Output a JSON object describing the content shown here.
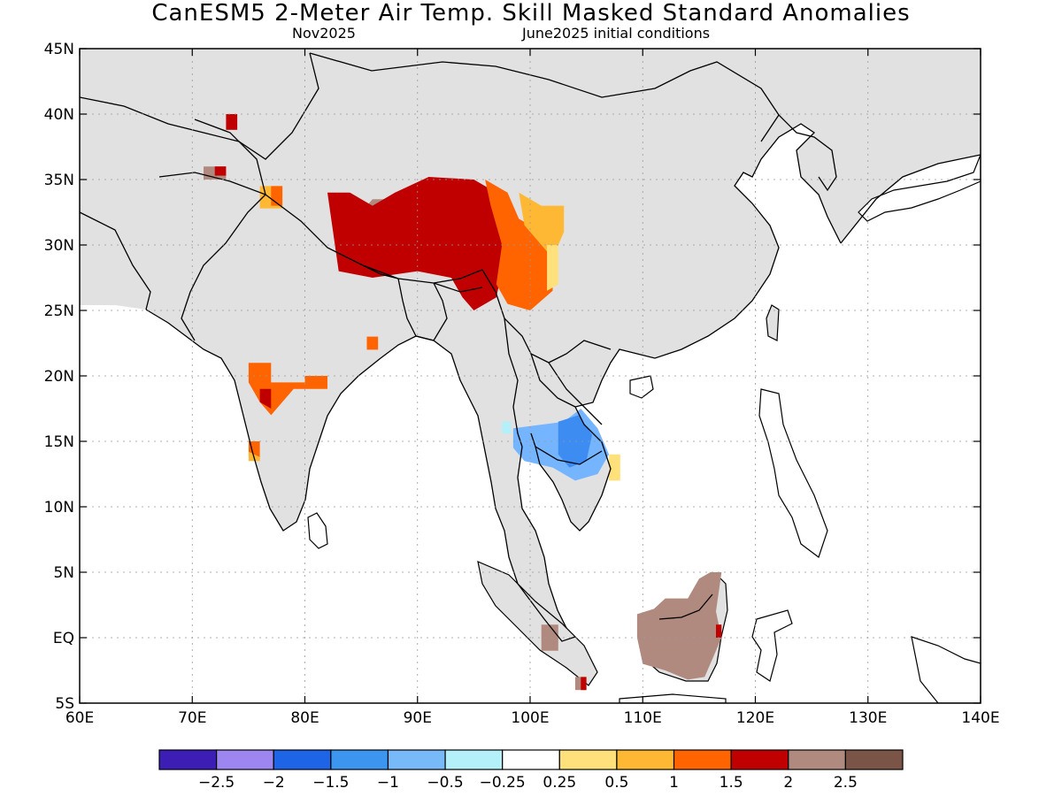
{
  "header": {
    "title": "CanESM5 2-Meter Air Temp. Skill Masked Standard Anomalies",
    "month": "Nov2025",
    "init": "June2025 initial conditions"
  },
  "map": {
    "lon_range": [
      60,
      140
    ],
    "lat_range": [
      -5,
      45
    ],
    "lon_ticks": [
      {
        "v": 60,
        "label": "60E"
      },
      {
        "v": 70,
        "label": "70E"
      },
      {
        "v": 80,
        "label": "80E"
      },
      {
        "v": 90,
        "label": "90E"
      },
      {
        "v": 100,
        "label": "100E"
      },
      {
        "v": 110,
        "label": "110E"
      },
      {
        "v": 120,
        "label": "120E"
      },
      {
        "v": 130,
        "label": "130E"
      },
      {
        "v": 140,
        "label": "140E"
      }
    ],
    "lat_ticks": [
      {
        "v": 45,
        "label": "45N"
      },
      {
        "v": 40,
        "label": "40N"
      },
      {
        "v": 35,
        "label": "35N"
      },
      {
        "v": 30,
        "label": "30N"
      },
      {
        "v": 25,
        "label": "25N"
      },
      {
        "v": 20,
        "label": "20N"
      },
      {
        "v": 15,
        "label": "15N"
      },
      {
        "v": 10,
        "label": "10N"
      },
      {
        "v": 5,
        "label": "5N"
      },
      {
        "v": 0,
        "label": "EQ"
      },
      {
        "v": -5,
        "label": "5S"
      }
    ],
    "land_mask_color": "#e1e1e1",
    "anomaly_regions": [
      {
        "name": "tibet-brown",
        "color": "#b08a7e",
        "points": [
          [
            84,
            31.5
          ],
          [
            86,
            33.5
          ],
          [
            89,
            33.5
          ],
          [
            91,
            35
          ],
          [
            93,
            34
          ],
          [
            94,
            31
          ],
          [
            92,
            29
          ],
          [
            89,
            28.5
          ],
          [
            86,
            28.5
          ],
          [
            84,
            29.5
          ]
        ]
      },
      {
        "name": "tibet-darkred",
        "color": "#c00000",
        "points": [
          [
            82,
            34
          ],
          [
            84,
            34
          ],
          [
            86,
            33
          ],
          [
            88,
            34
          ],
          [
            91,
            35.2
          ],
          [
            95,
            35
          ],
          [
            97,
            34
          ],
          [
            98,
            30
          ],
          [
            97,
            26
          ],
          [
            95,
            25
          ],
          [
            94,
            26
          ],
          [
            93,
            27.5
          ],
          [
            90,
            28
          ],
          [
            86,
            27.5
          ],
          [
            83,
            28
          ]
        ]
      },
      {
        "name": "sichuan-orange",
        "color": "#ff6400",
        "points": [
          [
            96,
            35
          ],
          [
            98,
            34
          ],
          [
            99,
            32
          ],
          [
            101,
            31
          ],
          [
            102,
            29
          ],
          [
            102,
            26.5
          ],
          [
            100,
            25
          ],
          [
            98,
            25.5
          ],
          [
            97,
            27
          ],
          [
            97.5,
            30
          ],
          [
            96.5,
            33
          ]
        ]
      },
      {
        "name": "sichuan-lightorange",
        "color": "#ffb833",
        "points": [
          [
            99,
            34
          ],
          [
            101,
            33
          ],
          [
            103,
            33
          ],
          [
            103,
            31
          ],
          [
            102,
            29
          ],
          [
            101,
            30
          ],
          [
            99.5,
            31.5
          ]
        ]
      },
      {
        "name": "sichuan-yellow",
        "color": "#ffe07a",
        "points": [
          [
            101.5,
            30
          ],
          [
            102.5,
            30
          ],
          [
            102.5,
            27
          ],
          [
            101.5,
            26.5
          ]
        ]
      },
      {
        "name": "india-orange",
        "color": "#ff6400",
        "points": [
          [
            75,
            21
          ],
          [
            77,
            21
          ],
          [
            77,
            19.5
          ],
          [
            80,
            19.5
          ],
          [
            80,
            20
          ],
          [
            82,
            20
          ],
          [
            82,
            19
          ],
          [
            79,
            19
          ],
          [
            77,
            17
          ],
          [
            76,
            18
          ],
          [
            75,
            19.5
          ]
        ]
      },
      {
        "name": "india-darkred",
        "color": "#c00000",
        "points": [
          [
            76,
            19
          ],
          [
            77,
            19
          ],
          [
            77,
            17.5
          ],
          [
            76,
            18
          ]
        ]
      },
      {
        "name": "india-small-orange",
        "color": "#ff6400",
        "points": [
          [
            75,
            15
          ],
          [
            76,
            15
          ],
          [
            76,
            13.5
          ],
          [
            75,
            13.8
          ]
        ]
      },
      {
        "name": "india-small-yellow",
        "color": "#ffb833",
        "points": [
          [
            75,
            14.2
          ],
          [
            76,
            13.8
          ],
          [
            76,
            13.5
          ],
          [
            75,
            13.5
          ]
        ]
      },
      {
        "name": "ne-india-orange",
        "color": "#ff6400",
        "points": [
          [
            85.5,
            23
          ],
          [
            86.5,
            23
          ],
          [
            86.5,
            22
          ],
          [
            85.5,
            22
          ]
        ]
      },
      {
        "name": "kashmir-lightorange",
        "color": "#ffb833",
        "points": [
          [
            76,
            34.5
          ],
          [
            78,
            34.5
          ],
          [
            78,
            32.8
          ],
          [
            76,
            32.8
          ]
        ]
      },
      {
        "name": "kashmir-orange",
        "color": "#ff6400",
        "points": [
          [
            77,
            34.5
          ],
          [
            78,
            34.5
          ],
          [
            78,
            33
          ],
          [
            77,
            33
          ]
        ]
      },
      {
        "name": "pak-brown",
        "color": "#b08a7e",
        "points": [
          [
            71,
            36
          ],
          [
            73,
            36
          ],
          [
            73,
            35
          ],
          [
            71,
            35
          ]
        ]
      },
      {
        "name": "pak-darkred",
        "color": "#c00000",
        "points": [
          [
            72,
            36
          ],
          [
            73,
            36
          ],
          [
            73,
            35.3
          ],
          [
            72,
            35.3
          ]
        ]
      },
      {
        "name": "tajik-darkred",
        "color": "#c00000",
        "points": [
          [
            73,
            40
          ],
          [
            74,
            40
          ],
          [
            74,
            38.8
          ],
          [
            73,
            38.8
          ]
        ]
      },
      {
        "name": "indochina-blue",
        "color": "#75b4ff",
        "points": [
          [
            98.5,
            16
          ],
          [
            103,
            16.5
          ],
          [
            104.5,
            17.5
          ],
          [
            106,
            16
          ],
          [
            107,
            14
          ],
          [
            106,
            12.5
          ],
          [
            104,
            12
          ],
          [
            102,
            13
          ],
          [
            99.5,
            13.5
          ],
          [
            98.5,
            14.5
          ]
        ]
      },
      {
        "name": "indochina-midblue",
        "color": "#3c8cf2",
        "points": [
          [
            102.5,
            16.5
          ],
          [
            104.3,
            17
          ],
          [
            105.5,
            15.5
          ],
          [
            105,
            13.5
          ],
          [
            103.5,
            13
          ],
          [
            102.5,
            14
          ]
        ]
      },
      {
        "name": "indochina-yellow",
        "color": "#ffe07a",
        "points": [
          [
            107,
            14
          ],
          [
            108,
            14
          ],
          [
            108,
            12
          ],
          [
            107,
            12
          ]
        ]
      },
      {
        "name": "indochina-cyan",
        "color": "#b4f0fa",
        "points": [
          [
            97.5,
            16.5
          ],
          [
            98.3,
            16.5
          ],
          [
            98.3,
            15.6
          ],
          [
            97.5,
            15.6
          ]
        ]
      },
      {
        "name": "borneo-brown",
        "color": "#b08a7e",
        "points": [
          [
            109.5,
            1.8
          ],
          [
            111,
            2.2
          ],
          [
            112,
            3
          ],
          [
            114,
            3
          ],
          [
            115,
            4.5
          ],
          [
            116,
            5
          ],
          [
            117,
            5
          ],
          [
            116.5,
            2
          ],
          [
            117,
            0
          ],
          [
            116,
            -2
          ],
          [
            115.5,
            -3
          ],
          [
            114,
            -3.2
          ],
          [
            112,
            -2.5
          ],
          [
            110,
            -2
          ],
          [
            109.5,
            0
          ]
        ]
      },
      {
        "name": "borneo-darkred",
        "color": "#c00000",
        "points": [
          [
            116.5,
            1
          ],
          [
            117,
            1
          ],
          [
            117,
            0
          ],
          [
            116.5,
            0
          ]
        ]
      },
      {
        "name": "sumatra-brown",
        "color": "#b08a7e",
        "points": [
          [
            101,
            1
          ],
          [
            102.5,
            1
          ],
          [
            102.5,
            -1
          ],
          [
            101,
            -1
          ]
        ]
      },
      {
        "name": "sumatra-brown-south",
        "color": "#b08a7e",
        "points": [
          [
            104,
            -3
          ],
          [
            105,
            -3
          ],
          [
            105,
            -4
          ],
          [
            104,
            -4
          ]
        ]
      },
      {
        "name": "sumatra-darkred",
        "color": "#c00000",
        "points": [
          [
            104.5,
            -3
          ],
          [
            105,
            -3
          ],
          [
            105,
            -4
          ],
          [
            104.5,
            -4
          ]
        ]
      }
    ]
  },
  "colorbar": {
    "colors": [
      "#3c1eb4",
      "#9e86f0",
      "#1e64e6",
      "#3c96f0",
      "#78b9fa",
      "#b4f0fa",
      "#ffffff",
      "#ffe07a",
      "#ffb833",
      "#ff6400",
      "#c00000",
      "#b08a7e",
      "#7a5446"
    ],
    "labels": [
      "-2.5",
      "-2",
      "-1.5",
      "-1",
      "-0.5",
      "-0.25",
      "0.25",
      "0.5",
      "1",
      "1.5",
      "2",
      "2.5"
    ]
  }
}
